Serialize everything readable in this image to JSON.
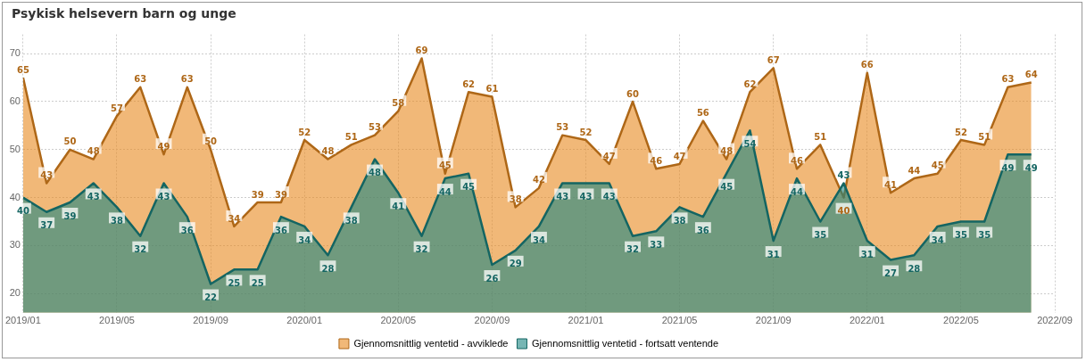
{
  "chart_data": {
    "type": "area",
    "title": "Psykisk helsevern barn og unge",
    "x": [
      "2019-01",
      "2019-02",
      "2019-03",
      "2019-04",
      "2019-05",
      "2019-06",
      "2019-07",
      "2019-08",
      "2019-09",
      "2019-10",
      "2019-11",
      "2019-12",
      "2020-01",
      "2020-02",
      "2020-03",
      "2020-04",
      "2020-05",
      "2020-06",
      "2020-07",
      "2020-08",
      "2020-09",
      "2020-10",
      "2020-11",
      "2020-12",
      "2021-01",
      "2021-02",
      "2021-03",
      "2021-04",
      "2021-05",
      "2021-06",
      "2021-07",
      "2021-08",
      "2021-09",
      "2021-10",
      "2021-11",
      "2021-12",
      "2022-01",
      "2022-02",
      "2022-03",
      "2022-04",
      "2022-05",
      "2022-06",
      "2022-07",
      "2022-08"
    ],
    "series": [
      {
        "name": "Gjennomsnittlig ventetid - avviklede",
        "color": "#e8891e",
        "values": [
          65,
          43,
          50,
          48,
          57,
          63,
          49,
          63,
          50,
          34,
          39,
          39,
          52,
          48,
          51,
          53,
          58,
          69,
          45,
          62,
          61,
          38,
          42,
          53,
          52,
          47,
          60,
          46,
          47,
          56,
          48,
          62,
          67,
          46,
          51,
          40,
          66,
          41,
          44,
          45,
          52,
          51,
          63,
          64
        ]
      },
      {
        "name": "Gjennomsnittlig ventetid - fortsatt ventende",
        "color": "#1a8682",
        "values": [
          40,
          37,
          39,
          43,
          38,
          32,
          43,
          36,
          22,
          25,
          25,
          36,
          34,
          28,
          38,
          48,
          41,
          32,
          44,
          45,
          26,
          29,
          34,
          43,
          43,
          43,
          32,
          33,
          38,
          36,
          45,
          54,
          31,
          44,
          35,
          43,
          31,
          27,
          28,
          34,
          35,
          35,
          49,
          49
        ]
      }
    ],
    "xlim": [
      "2019-01",
      "2022-09"
    ],
    "xticks": [
      {
        "value": "2019-01",
        "label": "2019/01"
      },
      {
        "value": "2019-05",
        "label": "2019/05"
      },
      {
        "value": "2019-09",
        "label": "2019/09"
      },
      {
        "value": "2020-01",
        "label": "2020/01"
      },
      {
        "value": "2020-05",
        "label": "2020/05"
      },
      {
        "value": "2020-09",
        "label": "2020/09"
      },
      {
        "value": "2021-01",
        "label": "2021/01"
      },
      {
        "value": "2021-05",
        "label": "2021/05"
      },
      {
        "value": "2021-09",
        "label": "2021/09"
      },
      {
        "value": "2022-01",
        "label": "2022/01"
      },
      {
        "value": "2022-05",
        "label": "2022/05"
      },
      {
        "value": "2022-09",
        "label": "2022/09"
      }
    ],
    "ylim": [
      16,
      74
    ],
    "yticks": [
      20,
      30,
      40,
      50,
      60,
      70
    ],
    "grid": true,
    "legend": "bottom",
    "data_labels": true,
    "marker": "none"
  }
}
